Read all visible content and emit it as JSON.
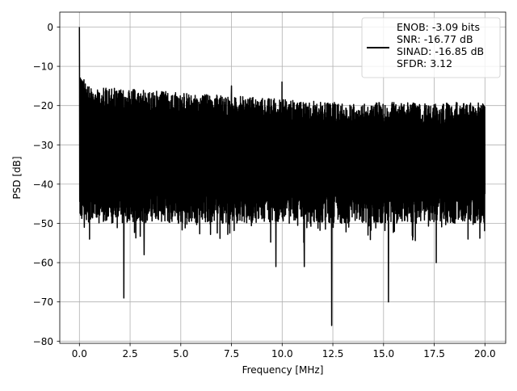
{
  "chart_data": {
    "type": "line",
    "title": "",
    "xlabel": "Frequency [MHz]",
    "ylabel": "PSD [dB]",
    "xlim": [
      -1,
      21
    ],
    "ylim": [
      -81,
      4
    ],
    "xticks": [
      0.0,
      2.5,
      5.0,
      7.5,
      10.0,
      12.5,
      15.0,
      17.5,
      20.0
    ],
    "xtick_labels": [
      "0.0",
      "2.5",
      "5.0",
      "7.5",
      "10.0",
      "12.5",
      "15.0",
      "17.5",
      "20.0"
    ],
    "yticks": [
      0,
      -10,
      -20,
      -30,
      -40,
      -50,
      -60,
      -70,
      -80
    ],
    "ytick_labels": [
      "0",
      "−10",
      "−20",
      "−30",
      "−40",
      "−50",
      "−60",
      "−70",
      "−80"
    ],
    "grid": true,
    "legend": {
      "placement": "top-right",
      "entries": [
        "ENOB: -3.09 bits",
        "SNR: -16.77 dB",
        "SINAD: -16.85 dB",
        "SFDR: 3.12"
      ]
    },
    "series": [
      {
        "name": "PSD",
        "color": "#000000",
        "x_range": [
          0,
          20
        ],
        "peak": {
          "x": 0.0,
          "y": 0
        },
        "upper_envelope_db": [
          -15,
          -22
        ],
        "lower_envelope_db": [
          -40,
          -55
        ],
        "notable_points": [
          {
            "x": 0.0,
            "y": 0
          },
          {
            "x": 0.05,
            "y": -13
          },
          {
            "x": 0.25,
            "y": -51
          },
          {
            "x": 0.5,
            "y": -54
          },
          {
            "x": 2.2,
            "y": -69
          },
          {
            "x": 3.2,
            "y": -58
          },
          {
            "x": 7.5,
            "y": -15
          },
          {
            "x": 9.7,
            "y": -61
          },
          {
            "x": 10.0,
            "y": -14
          },
          {
            "x": 11.1,
            "y": -61
          },
          {
            "x": 12.45,
            "y": -76
          },
          {
            "x": 15.25,
            "y": -70
          },
          {
            "x": 17.6,
            "y": -60
          }
        ]
      }
    ]
  }
}
